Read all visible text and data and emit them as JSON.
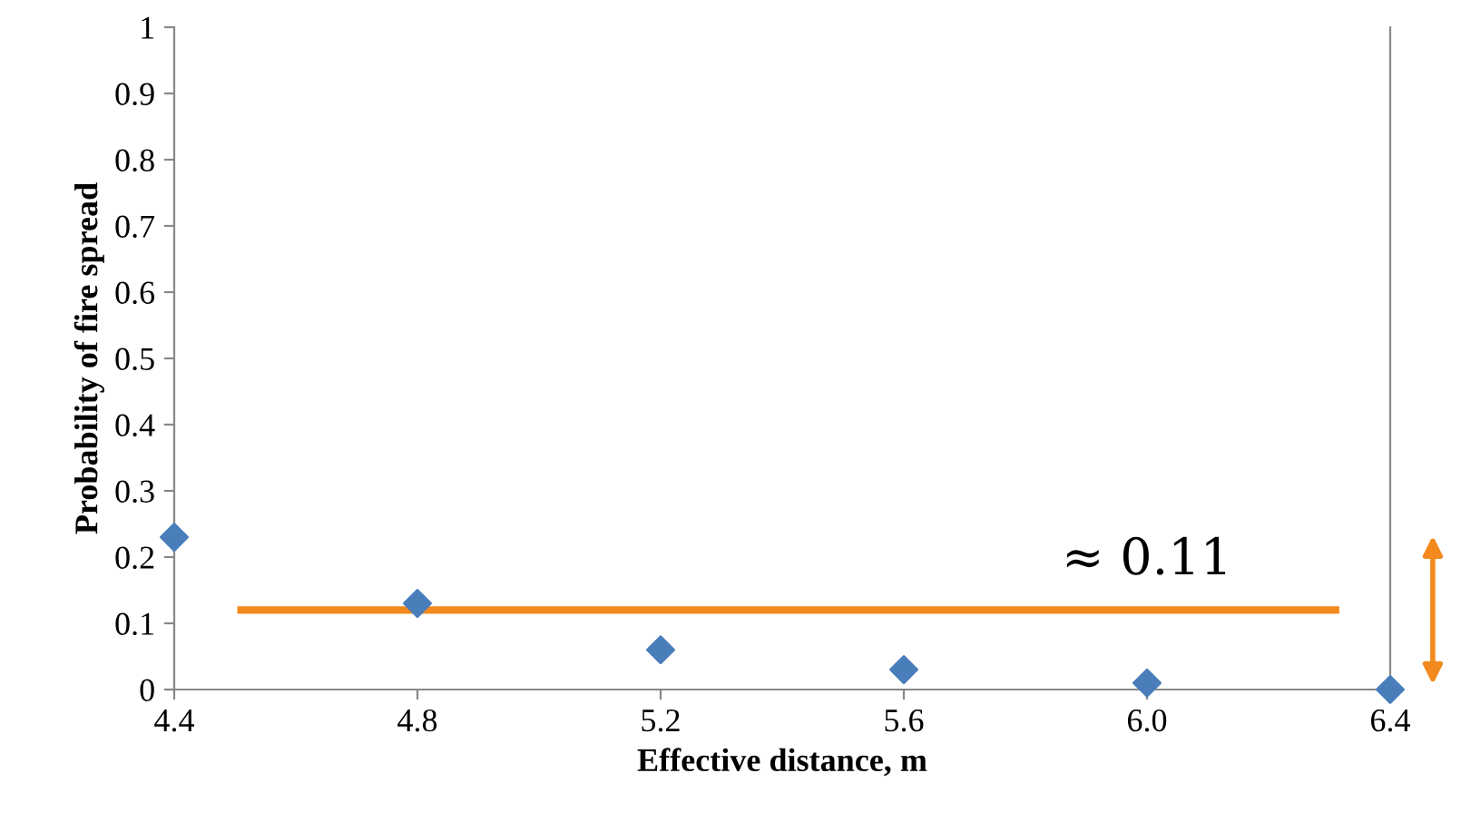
{
  "chart_data": {
    "type": "scatter",
    "xlabel": "Effective distance, m",
    "ylabel": "Probability of fire spread",
    "x": [
      4.4,
      4.8,
      5.2,
      5.6,
      6.0,
      6.4
    ],
    "series": [
      {
        "color": "#4a7ebb",
        "values": [
          0.23,
          0.13,
          0.06,
          0.03,
          0.01,
          0.0
        ],
        "marker": "diamond"
      },
      {
        "type": "line",
        "color": "#f28a1e",
        "x": [
          4.51,
          6.31
        ],
        "values": [
          0.12,
          0.12
        ],
        "marker": "none",
        "line_style": "solid"
      }
    ],
    "annotations": [
      {
        "text": "≈ 0.11",
        "x": 6.0,
        "y": 0.12
      }
    ],
    "xlim": [
      4.4,
      6.4
    ],
    "xticks": [
      4.4,
      4.8,
      5.2,
      {
        "value": 5.6,
        "label": "5.6"
      },
      {
        "value": 6.0,
        "label": "6.0"
      },
      6.4
    ],
    "ylim": [
      0,
      1
    ],
    "yticks": [
      0,
      0.1,
      0.2,
      0.3,
      0.4,
      0.5,
      0.6,
      0.7,
      0.8,
      0.9,
      1
    ],
    "grid": false,
    "legend": false
  }
}
